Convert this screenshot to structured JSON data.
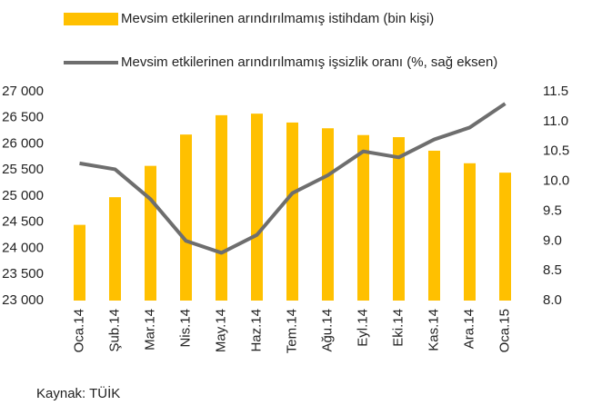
{
  "chart_data": {
    "type": "bar-line",
    "categories": [
      "Oca.14",
      "Şub.14",
      "Mar.14",
      "Nis.14",
      "May.14",
      "Haz.14",
      "Tem.14",
      "Ağu.14",
      "Eyl.14",
      "Eki.14",
      "Kas.14",
      "Ara.14",
      "Oca.15"
    ],
    "series": [
      {
        "name": "Mevsim etkilerinen arındırılmamış istihdam (bin kişi)",
        "type": "bar",
        "color": "#ffc000",
        "values": [
          24450,
          24980,
          25580,
          26180,
          26550,
          26580,
          26410,
          26300,
          26170,
          26130,
          25870,
          25630,
          25450
        ]
      },
      {
        "name": "Mevsim etkilerinen arındırılmamış işsizlik oranı (%, sağ eksen)",
        "type": "line",
        "axis": "y2",
        "color": "#6e6e6e",
        "values": [
          10.3,
          10.2,
          9.7,
          9.0,
          8.8,
          9.1,
          9.8,
          10.1,
          10.5,
          10.4,
          10.7,
          10.9,
          11.3
        ]
      }
    ],
    "ylim": [
      23000,
      27000
    ],
    "yticks": [
      {
        "value": 23000,
        "label": "23 000"
      },
      {
        "value": 23500,
        "label": "23 500"
      },
      {
        "value": 24000,
        "label": "24 000"
      },
      {
        "value": 24500,
        "label": "24 500"
      },
      {
        "value": 25000,
        "label": "25 000"
      },
      {
        "value": 25500,
        "label": "25 500"
      },
      {
        "value": 26000,
        "label": "26 000"
      },
      {
        "value": 26500,
        "label": "26 500"
      },
      {
        "value": 27000,
        "label": "27 000"
      }
    ],
    "y2lim": [
      8,
      11.5
    ],
    "y2ticks": [
      {
        "value": 8,
        "label": "8.0"
      },
      {
        "value": 8.5,
        "label": "8.5"
      },
      {
        "value": 9,
        "label": "9.0"
      },
      {
        "value": 9.5,
        "label": "9.5"
      },
      {
        "value": 10,
        "label": "10.0"
      },
      {
        "value": 10.5,
        "label": "10.5"
      },
      {
        "value": 11,
        "label": "11.0"
      },
      {
        "value": 11.5,
        "label": "11.5"
      }
    ],
    "grid": false,
    "source": "Kaynak: TÜİK"
  }
}
